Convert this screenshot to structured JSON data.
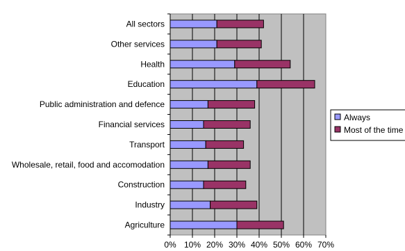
{
  "chart_data": {
    "type": "bar",
    "orientation": "horizontal",
    "stacked": true,
    "categories": [
      "All sectors",
      "Other services",
      "Health",
      "Education",
      "Public administration and defence",
      "Financial services",
      "Transport",
      "Wholesale, retail, food and accomodation",
      "Construction",
      "Industry",
      "Agriculture"
    ],
    "series": [
      {
        "name": "Always",
        "color": "#9999ff",
        "values": [
          21,
          21,
          29,
          39,
          17,
          15,
          16,
          17,
          15,
          18,
          30
        ]
      },
      {
        "name": "Most of the time",
        "color": "#993366",
        "values": [
          21,
          20,
          25,
          26,
          21,
          21,
          17,
          19,
          19,
          21,
          21
        ]
      }
    ],
    "xlim": [
      0,
      70
    ],
    "x_ticks": [
      "0%",
      "10%",
      "20%",
      "30%",
      "40%",
      "50%",
      "60%",
      "70%"
    ],
    "grid": true,
    "plot_background": "#c0c0c0",
    "legend_position": "right",
    "title": "",
    "xlabel": "",
    "ylabel": ""
  }
}
